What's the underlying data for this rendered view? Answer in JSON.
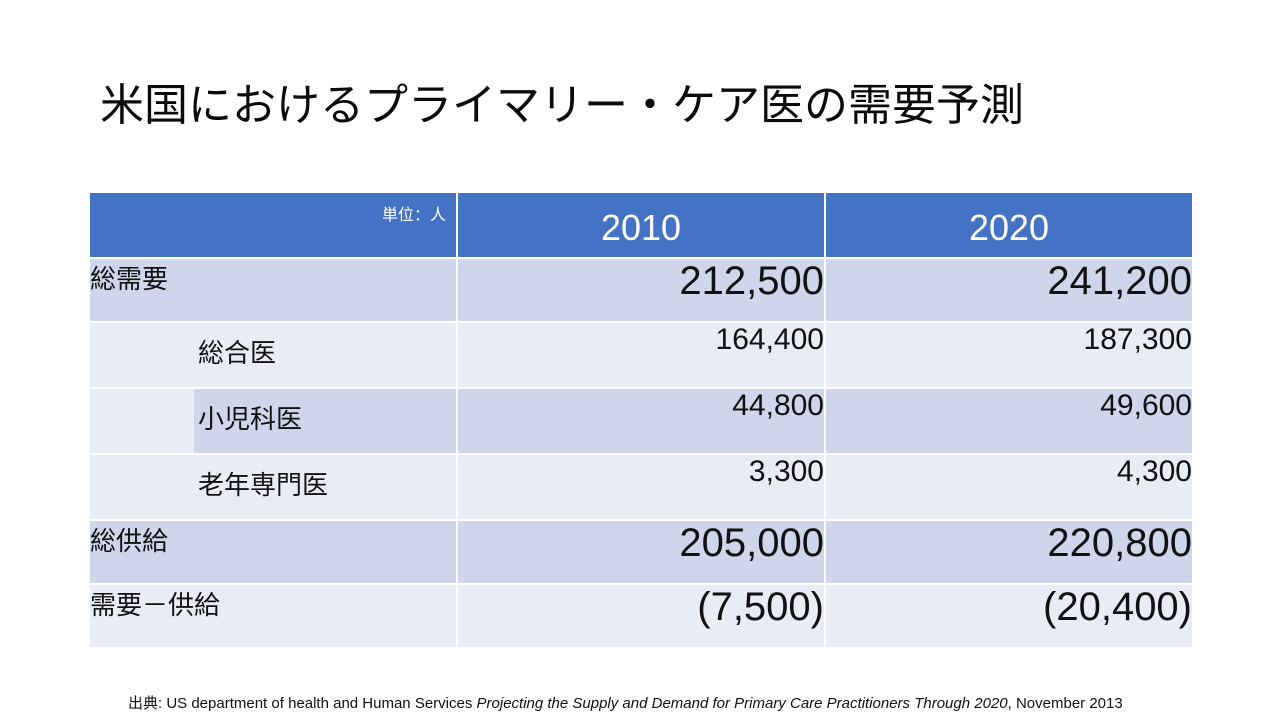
{
  "title": "米国におけるプライマリー・ケア医の需要予測",
  "table": {
    "unit_label": "単位：人",
    "years": [
      "2010",
      "2020"
    ],
    "rows": [
      {
        "label": "総需要",
        "v2010": "212,500",
        "v2020": "241,200"
      },
      {
        "label": "総合医",
        "v2010": "164,400",
        "v2020": "187,300"
      },
      {
        "label": "小児科医",
        "v2010": "44,800",
        "v2020": "49,600"
      },
      {
        "label": "老年専門医",
        "v2010": "3,300",
        "v2020": "4,300"
      },
      {
        "label": "総供給",
        "v2010": "205,000",
        "v2020": "220,800"
      },
      {
        "label": "需要－供給",
        "v2010": "(7,500)",
        "v2020": "(20,400)"
      }
    ]
  },
  "source": {
    "prefix": "出典: US department of health and Human Services ",
    "title_italic": "Projecting the Supply and Demand for Primary Care Practitioners Through 2020",
    "suffix": ", November 2013"
  }
}
